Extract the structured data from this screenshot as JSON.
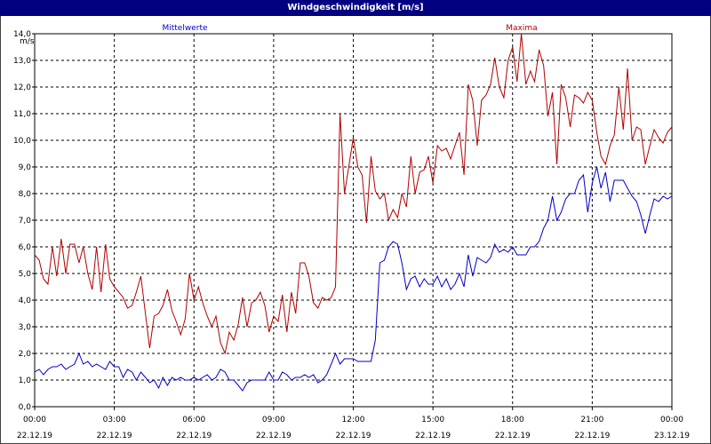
{
  "window": {
    "title": "Windgeschwindigkeit [m/s]"
  },
  "colors": {
    "mean": "#0000cc",
    "max": "#b00000",
    "grid": "#000000",
    "title_bg": "#000080"
  },
  "chart_data": {
    "type": "line",
    "ylabel": "m/s",
    "ylim": [
      0,
      14
    ],
    "xlim": [
      0,
      24
    ],
    "y_ticks": [
      "0,0",
      "1,0",
      "2,0",
      "3,0",
      "4,0",
      "5,0",
      "6,0",
      "7,0",
      "8,0",
      "9,0",
      "10,0",
      "11,0",
      "12,0",
      "13,0",
      "14,0"
    ],
    "x_ticks": [
      {
        "time": "00:00",
        "date": "22.12.19"
      },
      {
        "time": "03:00",
        "date": "22.12.19"
      },
      {
        "time": "06:00",
        "date": "22.12.19"
      },
      {
        "time": "09:00",
        "date": "22.12.19"
      },
      {
        "time": "12:00",
        "date": "22.12.19"
      },
      {
        "time": "15:00",
        "date": "22.12.19"
      },
      {
        "time": "18:00",
        "date": "22.12.19"
      },
      {
        "time": "21:00",
        "date": "22.12.19"
      },
      {
        "time": "00:00",
        "date": "23.12.19"
      }
    ],
    "grid": true,
    "legend": [
      "Mittelwerte",
      "Maxima"
    ],
    "series": [
      {
        "name": "Mittelwerte",
        "color": "#0000cc",
        "points": [
          [
            0.0,
            1.3
          ],
          [
            0.17,
            1.4
          ],
          [
            0.33,
            1.2
          ],
          [
            0.5,
            1.4
          ],
          [
            0.67,
            1.5
          ],
          [
            0.83,
            1.5
          ],
          [
            1.0,
            1.6
          ],
          [
            1.17,
            1.4
          ],
          [
            1.33,
            1.5
          ],
          [
            1.5,
            1.6
          ],
          [
            1.67,
            2.0
          ],
          [
            1.83,
            1.6
          ],
          [
            2.0,
            1.7
          ],
          [
            2.17,
            1.5
          ],
          [
            2.33,
            1.6
          ],
          [
            2.5,
            1.5
          ],
          [
            2.67,
            1.4
          ],
          [
            2.83,
            1.7
          ],
          [
            3.0,
            1.5
          ],
          [
            3.17,
            1.5
          ],
          [
            3.33,
            1.1
          ],
          [
            3.5,
            1.4
          ],
          [
            3.67,
            1.3
          ],
          [
            3.83,
            1.0
          ],
          [
            4.0,
            1.3
          ],
          [
            4.17,
            1.1
          ],
          [
            4.33,
            0.9
          ],
          [
            4.5,
            1.0
          ],
          [
            4.67,
            0.7
          ],
          [
            4.83,
            1.1
          ],
          [
            5.0,
            0.8
          ],
          [
            5.17,
            1.1
          ],
          [
            5.33,
            1.0
          ],
          [
            5.5,
            1.1
          ],
          [
            5.67,
            1.0
          ],
          [
            5.83,
            1.0
          ],
          [
            6.0,
            1.1
          ],
          [
            6.17,
            1.0
          ],
          [
            6.33,
            1.1
          ],
          [
            6.5,
            1.2
          ],
          [
            6.67,
            1.0
          ],
          [
            6.83,
            1.1
          ],
          [
            7.0,
            1.4
          ],
          [
            7.17,
            1.3
          ],
          [
            7.33,
            1.0
          ],
          [
            7.5,
            1.0
          ],
          [
            7.67,
            0.8
          ],
          [
            7.83,
            0.6
          ],
          [
            8.0,
            0.9
          ],
          [
            8.17,
            1.0
          ],
          [
            8.33,
            1.0
          ],
          [
            8.5,
            1.0
          ],
          [
            8.67,
            1.0
          ],
          [
            8.83,
            1.3
          ],
          [
            9.0,
            1.0
          ],
          [
            9.17,
            1.0
          ],
          [
            9.33,
            1.3
          ],
          [
            9.5,
            1.2
          ],
          [
            9.67,
            1.0
          ],
          [
            9.83,
            1.1
          ],
          [
            10.0,
            1.1
          ],
          [
            10.17,
            1.2
          ],
          [
            10.33,
            1.1
          ],
          [
            10.5,
            1.2
          ],
          [
            10.67,
            0.9
          ],
          [
            10.83,
            1.0
          ],
          [
            11.0,
            1.2
          ],
          [
            11.17,
            1.6
          ],
          [
            11.33,
            2.0
          ],
          [
            11.5,
            1.6
          ],
          [
            11.67,
            1.8
          ],
          [
            11.83,
            1.8
          ],
          [
            12.0,
            1.8
          ],
          [
            12.17,
            1.7
          ],
          [
            12.33,
            1.7
          ],
          [
            12.5,
            1.7
          ],
          [
            12.67,
            1.7
          ],
          [
            12.83,
            2.5
          ],
          [
            13.0,
            5.4
          ],
          [
            13.17,
            5.5
          ],
          [
            13.33,
            6.0
          ],
          [
            13.5,
            6.2
          ],
          [
            13.67,
            6.1
          ],
          [
            13.83,
            5.4
          ],
          [
            14.0,
            4.4
          ],
          [
            14.17,
            4.8
          ],
          [
            14.33,
            4.9
          ],
          [
            14.5,
            4.5
          ],
          [
            14.67,
            4.8
          ],
          [
            14.83,
            4.6
          ],
          [
            15.0,
            4.6
          ],
          [
            15.17,
            4.9
          ],
          [
            15.33,
            4.5
          ],
          [
            15.5,
            4.8
          ],
          [
            15.67,
            4.4
          ],
          [
            15.83,
            4.6
          ],
          [
            16.0,
            5.0
          ],
          [
            16.17,
            4.5
          ],
          [
            16.33,
            5.7
          ],
          [
            16.5,
            4.9
          ],
          [
            16.67,
            5.6
          ],
          [
            16.83,
            5.5
          ],
          [
            17.0,
            5.4
          ],
          [
            17.17,
            5.6
          ],
          [
            17.33,
            6.1
          ],
          [
            17.5,
            5.8
          ],
          [
            17.67,
            5.9
          ],
          [
            17.83,
            5.8
          ],
          [
            18.0,
            6.0
          ],
          [
            18.17,
            5.7
          ],
          [
            18.33,
            5.7
          ],
          [
            18.5,
            5.7
          ],
          [
            18.67,
            6.0
          ],
          [
            18.83,
            6.0
          ],
          [
            19.0,
            6.2
          ],
          [
            19.17,
            6.7
          ],
          [
            19.33,
            7.0
          ],
          [
            19.5,
            7.9
          ],
          [
            19.67,
            7.0
          ],
          [
            19.83,
            7.3
          ],
          [
            20.0,
            7.8
          ],
          [
            20.17,
            8.0
          ],
          [
            20.33,
            8.0
          ],
          [
            20.5,
            8.5
          ],
          [
            20.67,
            8.7
          ],
          [
            20.83,
            7.3
          ],
          [
            21.0,
            8.4
          ],
          [
            21.17,
            9.0
          ],
          [
            21.33,
            8.2
          ],
          [
            21.5,
            8.8
          ],
          [
            21.67,
            7.7
          ],
          [
            21.83,
            8.5
          ],
          [
            22.0,
            8.5
          ],
          [
            22.17,
            8.5
          ],
          [
            22.33,
            8.2
          ],
          [
            22.5,
            7.9
          ],
          [
            22.67,
            7.7
          ],
          [
            22.83,
            7.2
          ],
          [
            23.0,
            6.5
          ],
          [
            23.17,
            7.2
          ],
          [
            23.33,
            7.8
          ],
          [
            23.5,
            7.7
          ],
          [
            23.67,
            7.9
          ],
          [
            23.83,
            7.8
          ],
          [
            24.0,
            7.9
          ]
        ]
      },
      {
        "name": "Maxima",
        "color": "#b00000",
        "points": [
          [
            0.0,
            5.7
          ],
          [
            0.17,
            5.5
          ],
          [
            0.33,
            4.8
          ],
          [
            0.5,
            4.6
          ],
          [
            0.67,
            6.0
          ],
          [
            0.83,
            4.9
          ],
          [
            1.0,
            6.3
          ],
          [
            1.17,
            5.0
          ],
          [
            1.33,
            6.1
          ],
          [
            1.5,
            6.1
          ],
          [
            1.67,
            5.4
          ],
          [
            1.83,
            6.0
          ],
          [
            2.0,
            5.0
          ],
          [
            2.17,
            4.4
          ],
          [
            2.33,
            6.0
          ],
          [
            2.5,
            4.3
          ],
          [
            2.67,
            6.1
          ],
          [
            2.83,
            4.8
          ],
          [
            3.0,
            4.5
          ],
          [
            3.17,
            4.3
          ],
          [
            3.33,
            4.1
          ],
          [
            3.5,
            3.7
          ],
          [
            3.67,
            3.8
          ],
          [
            3.83,
            4.3
          ],
          [
            4.0,
            4.9
          ],
          [
            4.17,
            3.5
          ],
          [
            4.33,
            2.2
          ],
          [
            4.5,
            3.4
          ],
          [
            4.67,
            3.5
          ],
          [
            4.83,
            3.8
          ],
          [
            5.0,
            4.4
          ],
          [
            5.17,
            3.6
          ],
          [
            5.33,
            3.2
          ],
          [
            5.5,
            2.7
          ],
          [
            5.67,
            3.3
          ],
          [
            5.83,
            5.0
          ],
          [
            6.0,
            4.0
          ],
          [
            6.17,
            4.5
          ],
          [
            6.33,
            3.9
          ],
          [
            6.5,
            3.4
          ],
          [
            6.67,
            3.0
          ],
          [
            6.83,
            3.4
          ],
          [
            7.0,
            2.4
          ],
          [
            7.17,
            2.0
          ],
          [
            7.33,
            2.8
          ],
          [
            7.5,
            2.5
          ],
          [
            7.67,
            3.1
          ],
          [
            7.83,
            4.1
          ],
          [
            8.0,
            3.0
          ],
          [
            8.17,
            3.9
          ],
          [
            8.33,
            4.0
          ],
          [
            8.5,
            4.3
          ],
          [
            8.67,
            3.8
          ],
          [
            8.83,
            2.8
          ],
          [
            9.0,
            3.4
          ],
          [
            9.17,
            3.2
          ],
          [
            9.33,
            4.2
          ],
          [
            9.5,
            2.8
          ],
          [
            9.67,
            4.3
          ],
          [
            9.83,
            3.5
          ],
          [
            10.0,
            5.4
          ],
          [
            10.17,
            5.4
          ],
          [
            10.33,
            4.9
          ],
          [
            10.5,
            3.9
          ],
          [
            10.67,
            3.7
          ],
          [
            10.83,
            4.1
          ],
          [
            11.0,
            4.0
          ],
          [
            11.17,
            4.1
          ],
          [
            11.33,
            4.5
          ],
          [
            11.5,
            11.0
          ],
          [
            11.67,
            8.0
          ],
          [
            11.83,
            9.0
          ],
          [
            12.0,
            10.1
          ],
          [
            12.17,
            9.0
          ],
          [
            12.33,
            8.7
          ],
          [
            12.5,
            6.9
          ],
          [
            12.67,
            9.4
          ],
          [
            12.83,
            8.1
          ],
          [
            13.0,
            7.8
          ],
          [
            13.17,
            8.0
          ],
          [
            13.33,
            7.0
          ],
          [
            13.5,
            7.4
          ],
          [
            13.67,
            7.1
          ],
          [
            13.83,
            8.0
          ],
          [
            14.0,
            7.5
          ],
          [
            14.17,
            9.4
          ],
          [
            14.33,
            8.0
          ],
          [
            14.5,
            8.8
          ],
          [
            14.67,
            8.9
          ],
          [
            14.83,
            9.4
          ],
          [
            15.0,
            8.4
          ],
          [
            15.17,
            9.8
          ],
          [
            15.33,
            9.6
          ],
          [
            15.5,
            9.7
          ],
          [
            15.67,
            9.3
          ],
          [
            15.83,
            9.8
          ],
          [
            16.0,
            10.3
          ],
          [
            16.17,
            8.7
          ],
          [
            16.33,
            12.1
          ],
          [
            16.5,
            11.5
          ],
          [
            16.67,
            9.8
          ],
          [
            16.83,
            11.5
          ],
          [
            17.0,
            11.7
          ],
          [
            17.17,
            12.1
          ],
          [
            17.33,
            13.1
          ],
          [
            17.5,
            12.0
          ],
          [
            17.67,
            11.6
          ],
          [
            17.83,
            13.0
          ],
          [
            18.0,
            13.5
          ],
          [
            18.17,
            12.2
          ],
          [
            18.33,
            14.0
          ],
          [
            18.5,
            12.1
          ],
          [
            18.67,
            12.6
          ],
          [
            18.83,
            12.2
          ],
          [
            19.0,
            13.4
          ],
          [
            19.17,
            12.8
          ],
          [
            19.33,
            10.9
          ],
          [
            19.5,
            11.8
          ],
          [
            19.67,
            9.1
          ],
          [
            19.83,
            12.1
          ],
          [
            20.0,
            11.6
          ],
          [
            20.17,
            10.5
          ],
          [
            20.33,
            11.7
          ],
          [
            20.5,
            11.6
          ],
          [
            20.67,
            11.4
          ],
          [
            20.83,
            11.8
          ],
          [
            21.0,
            11.5
          ],
          [
            21.17,
            10.3
          ],
          [
            21.33,
            9.4
          ],
          [
            21.5,
            9.1
          ],
          [
            21.67,
            9.8
          ],
          [
            21.83,
            10.2
          ],
          [
            22.0,
            12.0
          ],
          [
            22.17,
            10.4
          ],
          [
            22.33,
            12.7
          ],
          [
            22.5,
            10.0
          ],
          [
            22.67,
            10.5
          ],
          [
            22.83,
            10.4
          ],
          [
            23.0,
            9.1
          ],
          [
            23.17,
            9.8
          ],
          [
            23.33,
            10.4
          ],
          [
            23.5,
            10.1
          ],
          [
            23.67,
            9.9
          ],
          [
            23.83,
            10.3
          ],
          [
            24.0,
            10.5
          ]
        ]
      }
    ]
  }
}
